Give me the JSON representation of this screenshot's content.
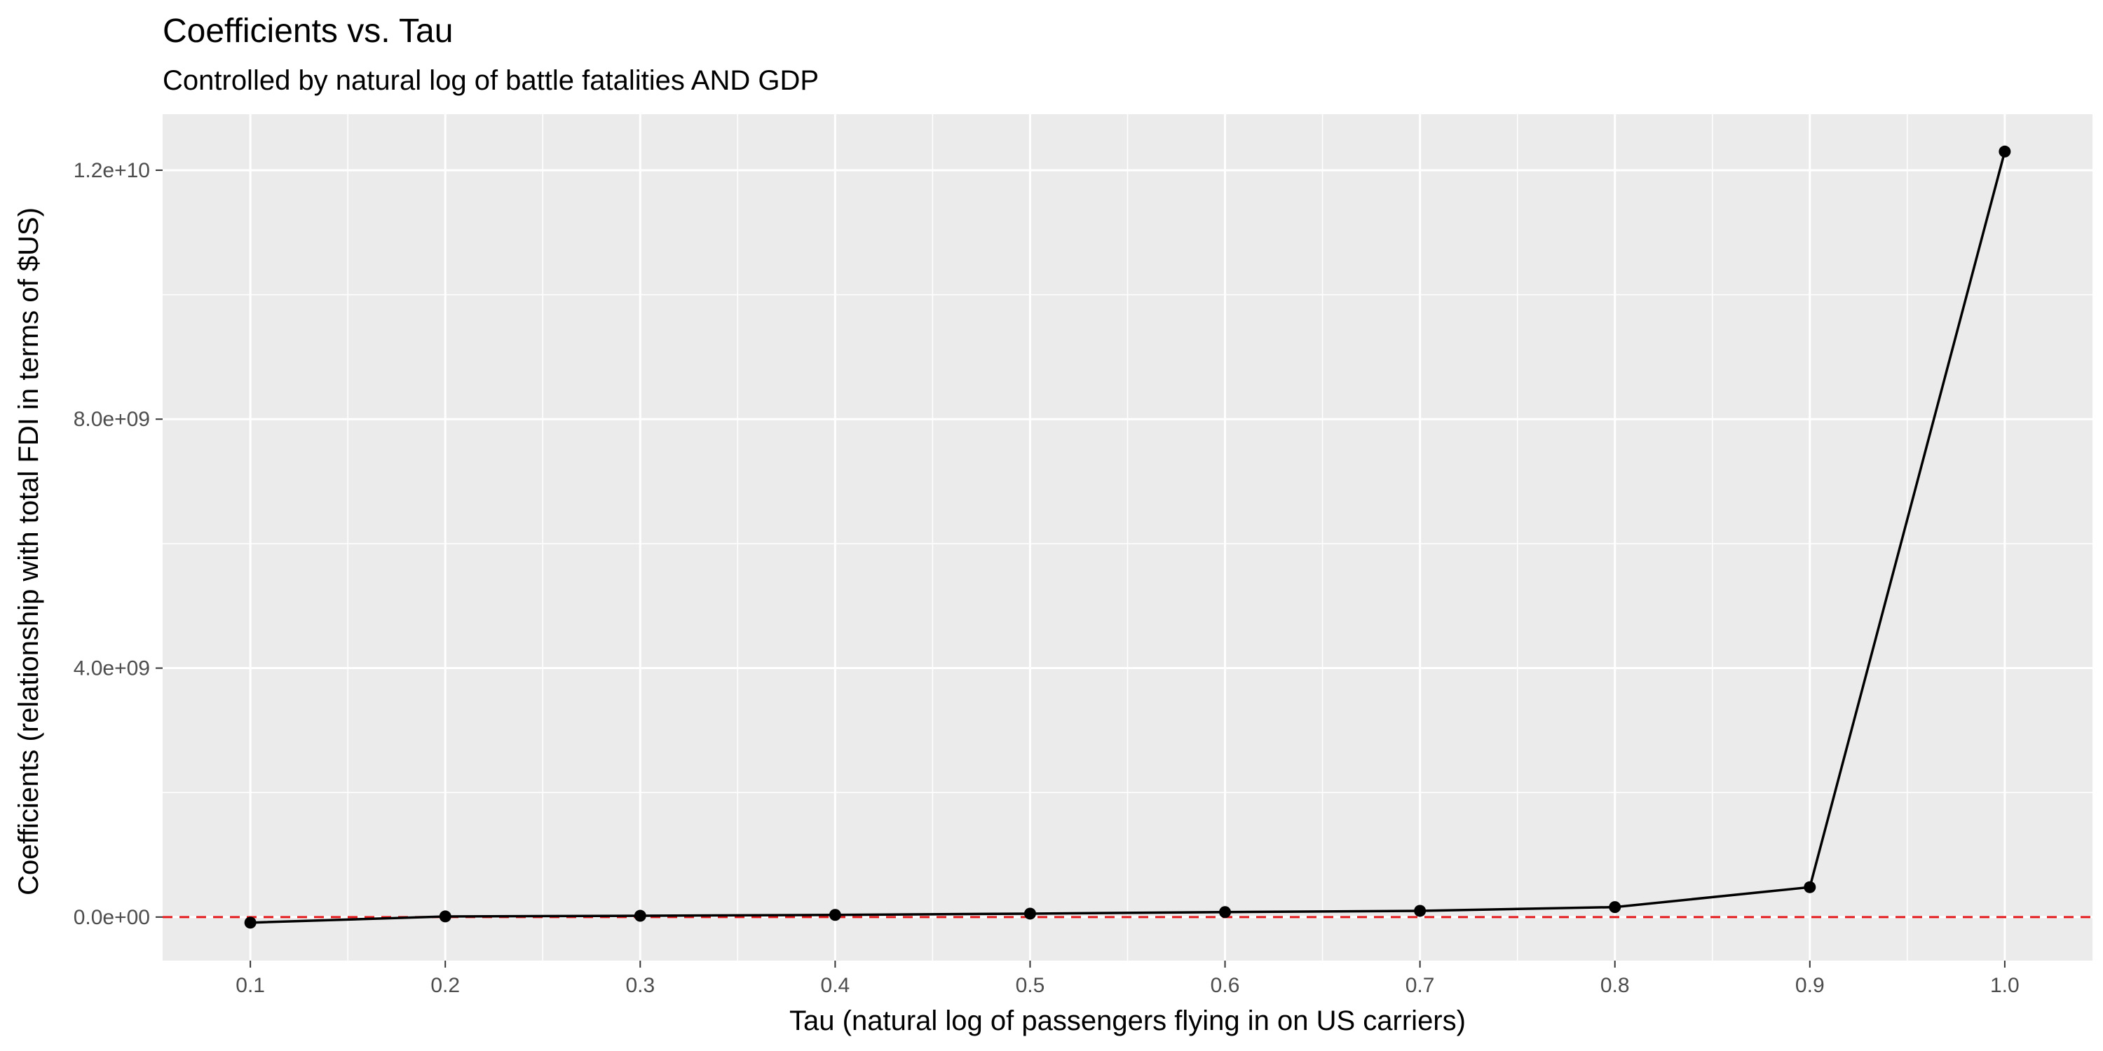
{
  "chart_data": {
    "type": "line",
    "title": "Coefficients vs. Tau",
    "subtitle": "Controlled by natural log of battle fatalities AND GDP",
    "xlabel": "Tau (natural log of passengers flying in on US carriers)",
    "ylabel": "Coefficients (relationship with total FDI in terms of $US)",
    "x": [
      0.1,
      0.2,
      0.3,
      0.4,
      0.5,
      0.6,
      0.7,
      0.8,
      0.9,
      1.0
    ],
    "series": [
      {
        "values": [
          -90000000,
          10000000,
          20000000,
          35000000,
          55000000,
          80000000,
          100000000,
          160000000,
          480000000,
          12300000000
        ],
        "color": "#000000"
      }
    ],
    "xlim": [
      0.055,
      1.045
    ],
    "ylim": [
      -700000000,
      12900000000
    ],
    "x_ticks": [
      0.1,
      0.2,
      0.3,
      0.4,
      0.5,
      0.6,
      0.7,
      0.8,
      0.9,
      1.0
    ],
    "x_tick_labels": [
      "0.1",
      "0.2",
      "0.3",
      "0.4",
      "0.5",
      "0.6",
      "0.7",
      "0.8",
      "0.9",
      "1.0"
    ],
    "y_ticks": [
      0,
      4000000000,
      8000000000,
      12000000000
    ],
    "y_tick_labels": [
      "0.0e+00",
      "4.0e+09",
      "8.0e+09",
      "1.2e+10"
    ],
    "reference_line": {
      "y": 0,
      "style": "dashed",
      "color": "#e41a1c"
    },
    "grid": true,
    "legend": "none",
    "panel_background": "#ebebeb"
  }
}
